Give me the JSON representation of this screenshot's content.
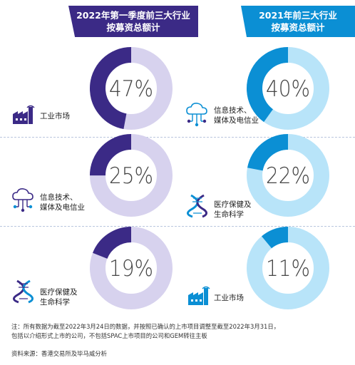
{
  "headers": {
    "left": [
      "2022年第一季度前三大行业",
      "按募资总额计"
    ],
    "right": [
      "2021年前三大行业",
      "按募资总额计"
    ]
  },
  "colors": {
    "purple_dark": "#3b2a86",
    "purple_light": "#d7d2ee",
    "blue_dark": "#0b8fd4",
    "blue_light": "#b8e4f9"
  },
  "labels": {
    "left_row1": [
      "工业市场"
    ],
    "left_row2": [
      "信息技术、",
      "媒体及电信业"
    ],
    "left_row3": [
      "医疗保健及",
      "生命科学"
    ],
    "right_row1": [
      "信息技术、",
      "媒体及电信业"
    ],
    "right_row2": [
      "医疗保健及",
      "生命科学"
    ],
    "right_row3": [
      "工业市场"
    ]
  },
  "notes": {
    "note_line1": "注：所有数据为截至2022年3月24日的数据，并按照已确认的上市项目调整至截至2022年3月31日，",
    "note_line2": "包括以介绍形式上市的公司，不包括SPAC上市项目的公司和GEM转往主板",
    "source": "资料来源：香港交易所及毕马威分析"
  },
  "chart_data": [
    {
      "type": "pie",
      "title": "2022年第一季度前三大行业按募资总额计",
      "categories": [
        "工业市场",
        "信息技术、媒体及电信业",
        "医疗保健及生命科学"
      ],
      "values": [
        47,
        25,
        19
      ],
      "value_labels": [
        "47%",
        "25%",
        "19%"
      ],
      "color": "#3b2a86",
      "remainder_color": "#d7d2ee"
    },
    {
      "type": "pie",
      "title": "2021年前三大行业按募资总额计",
      "categories": [
        "信息技术、媒体及电信业",
        "医疗保健及生命科学",
        "工业市场"
      ],
      "values": [
        40,
        22,
        11
      ],
      "value_labels": [
        "40%",
        "22%",
        "11%"
      ],
      "color": "#0b8fd4",
      "remainder_color": "#b8e4f9"
    }
  ]
}
